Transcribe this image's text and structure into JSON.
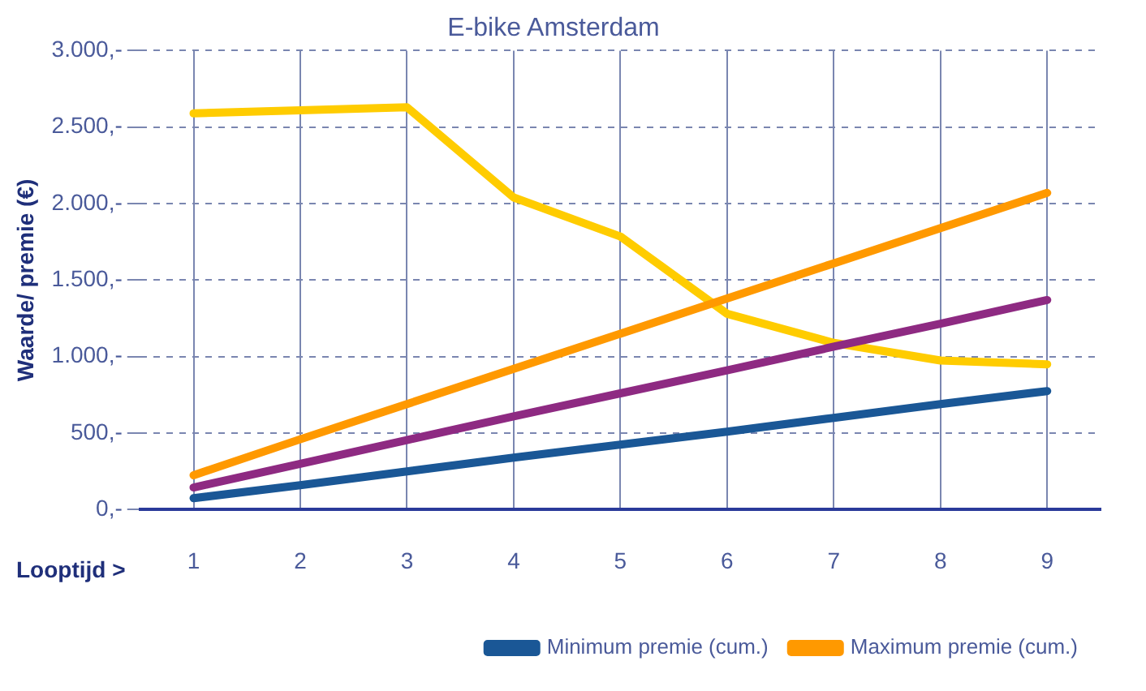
{
  "chart_data": {
    "type": "line",
    "title": "E-bike Amsterdam",
    "xlabel": "Looptijd >",
    "ylabel": "Waarde/ premie (€)",
    "categories": [
      "1",
      "2",
      "3",
      "4",
      "5",
      "6",
      "7",
      "8",
      "9"
    ],
    "series": [
      {
        "name": "Minimum premie (cum.)",
        "color": "#1a5796",
        "values": [
          75,
          160,
          250,
          340,
          425,
          510,
          600,
          690,
          775
        ]
      },
      {
        "name": "Maximum premie (cum.)",
        "color": "#ff9900",
        "values": [
          225,
          460,
          690,
          920,
          1150,
          1380,
          1610,
          1840,
          2070
        ]
      },
      {
        "color": "#8e2a82",
        "values": [
          145,
          300,
          455,
          610,
          760,
          910,
          1065,
          1215,
          1370
        ]
      },
      {
        "color": "#ffcc00",
        "values": [
          2590,
          2610,
          2630,
          2040,
          1785,
          1280,
          1090,
          975,
          950
        ]
      }
    ],
    "ylim": [
      0,
      3000
    ],
    "yticks": [
      {
        "value": 0,
        "label": "0,-"
      },
      {
        "value": 500,
        "label": "500,-"
      },
      {
        "value": 1000,
        "label": "1.000,-"
      },
      {
        "value": 1500,
        "label": "1.500,-"
      },
      {
        "value": 2000,
        "label": "2.000,-"
      },
      {
        "value": 2500,
        "label": "2.500,-"
      },
      {
        "value": 3000,
        "label": "3.000,-"
      }
    ],
    "grid": true,
    "legend": "bottom right",
    "marker": "none",
    "line_style": "solid"
  }
}
